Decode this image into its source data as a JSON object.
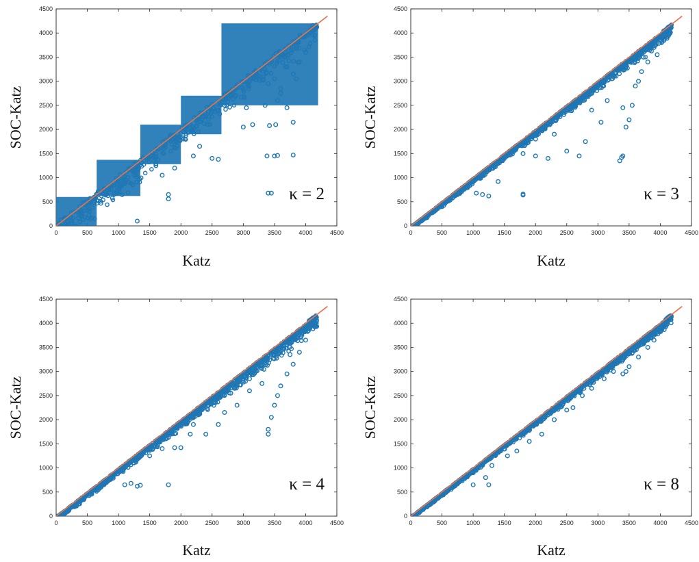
{
  "chart_data": [
    {
      "type": "scatter",
      "annotation": "κ = 2",
      "xlabel": "Katz",
      "ylabel": "SOC-Katz",
      "xlim": [
        0,
        4500
      ],
      "ylim": [
        0,
        4500
      ],
      "xticks": [
        "0",
        "500",
        "1000",
        "1500",
        "2000",
        "2500",
        "3000",
        "3500",
        "4000",
        "4500"
      ],
      "yticks": [
        "0",
        "500",
        "1000",
        "1500",
        "2000",
        "2500",
        "3000",
        "3500",
        "4000",
        "4500"
      ],
      "reference_line": {
        "x": [
          0,
          4350
        ],
        "y": [
          0,
          4350
        ],
        "color": "#e8744a"
      },
      "marker_color": "#1f77b4",
      "marker": "open-circle",
      "bands": [
        {
          "x": [
            0,
            650
          ],
          "y": [
            0,
            600
          ]
        },
        {
          "x": [
            650,
            1350
          ],
          "y": [
            620,
            1370
          ]
        },
        {
          "x": [
            1350,
            2000
          ],
          "y": [
            1280,
            2100
          ]
        },
        {
          "x": [
            2000,
            2650
          ],
          "y": [
            1900,
            2700
          ]
        },
        {
          "x": [
            2650,
            4200
          ],
          "y": [
            2500,
            4200
          ]
        }
      ],
      "outliers": [
        [
          1300,
          100
        ],
        [
          1800,
          650
        ],
        [
          1800,
          560
        ],
        [
          3400,
          680
        ],
        [
          3450,
          680
        ],
        [
          3380,
          1450
        ],
        [
          3500,
          1450
        ],
        [
          3550,
          1460
        ],
        [
          3800,
          1470
        ],
        [
          3000,
          2050
        ],
        [
          3150,
          2100
        ],
        [
          3420,
          2080
        ],
        [
          3520,
          2100
        ],
        [
          3800,
          2150
        ],
        [
          3700,
          2450
        ],
        [
          3550,
          2600
        ],
        [
          3600,
          2850
        ],
        [
          3400,
          2950
        ],
        [
          3500,
          3050
        ],
        [
          3800,
          3150
        ],
        [
          3700,
          3300
        ],
        [
          3900,
          3400
        ],
        [
          4000,
          3600
        ],
        [
          3850,
          3050
        ],
        [
          3600,
          2750
        ],
        [
          3350,
          2500
        ],
        [
          3050,
          2450
        ],
        [
          2700,
          2500
        ],
        [
          2600,
          1380
        ],
        [
          2500,
          1400
        ],
        [
          2300,
          1650
        ],
        [
          1900,
          1200
        ],
        [
          1700,
          1050
        ],
        [
          1600,
          1250
        ],
        [
          2200,
          1450
        ]
      ]
    },
    {
      "type": "scatter",
      "annotation": "κ = 3",
      "xlabel": "Katz",
      "ylabel": "SOC-Katz",
      "xlim": [
        0,
        4500
      ],
      "ylim": [
        0,
        4500
      ],
      "xticks": [
        "0",
        "500",
        "1000",
        "1500",
        "2000",
        "2500",
        "3000",
        "3500",
        "4000",
        "4500"
      ],
      "yticks": [
        "0",
        "500",
        "1000",
        "1500",
        "2000",
        "2500",
        "3000",
        "3500",
        "4000",
        "4500"
      ],
      "reference_line": {
        "x": [
          0,
          4350
        ],
        "y": [
          0,
          4350
        ],
        "color": "#e8744a"
      },
      "marker_color": "#1f77b4",
      "marker": "open-circle",
      "band_below_diagonal": 200,
      "outliers": [
        [
          1050,
          680
        ],
        [
          1150,
          650
        ],
        [
          1250,
          620
        ],
        [
          1800,
          660
        ],
        [
          1800,
          640
        ],
        [
          1400,
          920
        ],
        [
          1600,
          1500
        ],
        [
          1800,
          1500
        ],
        [
          2000,
          1450
        ],
        [
          2200,
          1400
        ],
        [
          2500,
          1550
        ],
        [
          2800,
          1750
        ],
        [
          2700,
          1450
        ],
        [
          3350,
          1350
        ],
        [
          3380,
          1420
        ],
        [
          3400,
          1450
        ],
        [
          3450,
          2050
        ],
        [
          3500,
          2200
        ],
        [
          3400,
          2450
        ],
        [
          3550,
          2500
        ],
        [
          3600,
          2900
        ],
        [
          3700,
          3200
        ],
        [
          3800,
          3400
        ],
        [
          3950,
          3550
        ],
        [
          3050,
          2150
        ],
        [
          2900,
          2400
        ],
        [
          3150,
          2600
        ],
        [
          2300,
          1900
        ],
        [
          2000,
          1800
        ],
        [
          3650,
          3000
        ],
        [
          3900,
          3700
        ],
        [
          4000,
          3900
        ]
      ]
    },
    {
      "type": "scatter",
      "annotation": "κ = 4",
      "xlabel": "Katz",
      "ylabel": "SOC-Katz",
      "xlim": [
        0,
        4500
      ],
      "ylim": [
        0,
        4500
      ],
      "xticks": [
        "0",
        "500",
        "1000",
        "1500",
        "2000",
        "2500",
        "3000",
        "3500",
        "4000",
        "4500"
      ],
      "yticks": [
        "0",
        "500",
        "1000",
        "1500",
        "2000",
        "2500",
        "3000",
        "3500",
        "4000",
        "4500"
      ],
      "reference_line": {
        "x": [
          0,
          4350
        ],
        "y": [
          0,
          4350
        ],
        "color": "#e8744a"
      },
      "marker_color": "#1f77b4",
      "marker": "open-circle",
      "band_below_diagonal": 250,
      "outliers": [
        [
          1100,
          650
        ],
        [
          1200,
          680
        ],
        [
          1300,
          620
        ],
        [
          1350,
          640
        ],
        [
          1800,
          650
        ],
        [
          1500,
          1250
        ],
        [
          1700,
          1400
        ],
        [
          1900,
          1420
        ],
        [
          2000,
          1420
        ],
        [
          2150,
          1700
        ],
        [
          2400,
          1700
        ],
        [
          2600,
          1900
        ],
        [
          2700,
          2150
        ],
        [
          2900,
          2300
        ],
        [
          3100,
          2600
        ],
        [
          3300,
          2750
        ],
        [
          3400,
          1700
        ],
        [
          3400,
          1800
        ],
        [
          3450,
          2050
        ],
        [
          3500,
          2300
        ],
        [
          3550,
          2500
        ],
        [
          3600,
          2700
        ],
        [
          3700,
          2950
        ],
        [
          3800,
          3150
        ],
        [
          3900,
          3400
        ],
        [
          4000,
          3650
        ],
        [
          3100,
          2850
        ],
        [
          2800,
          2550
        ],
        [
          3750,
          3350
        ],
        [
          2200,
          1900
        ]
      ]
    },
    {
      "type": "scatter",
      "annotation": "κ = 8",
      "xlabel": "Katz",
      "ylabel": "SOC-Katz",
      "xlim": [
        0,
        4500
      ],
      "ylim": [
        0,
        4500
      ],
      "xticks": [
        "0",
        "500",
        "1000",
        "1500",
        "2000",
        "2500",
        "3000",
        "3500",
        "4000",
        "4500"
      ],
      "yticks": [
        "0",
        "500",
        "1000",
        "1500",
        "2000",
        "2500",
        "3000",
        "3500",
        "4000",
        "4500"
      ],
      "reference_line": {
        "x": [
          0,
          4350
        ],
        "y": [
          0,
          4350
        ],
        "color": "#e8744a"
      },
      "marker_color": "#1f77b4",
      "marker": "open-circle",
      "band_below_diagonal": 150,
      "outliers": [
        [
          1000,
          650
        ],
        [
          1250,
          650
        ],
        [
          1200,
          800
        ],
        [
          1300,
          1050
        ],
        [
          1550,
          1250
        ],
        [
          1700,
          1350
        ],
        [
          1900,
          1550
        ],
        [
          2100,
          1700
        ],
        [
          2300,
          2000
        ],
        [
          2600,
          2250
        ],
        [
          2900,
          2650
        ],
        [
          3100,
          2850
        ],
        [
          3400,
          2950
        ],
        [
          3450,
          3000
        ],
        [
          3500,
          3100
        ],
        [
          3650,
          3300
        ],
        [
          3800,
          3500
        ],
        [
          3900,
          3650
        ],
        [
          4000,
          3850
        ],
        [
          2500,
          2200
        ],
        [
          2750,
          2500
        ],
        [
          3250,
          3000
        ]
      ]
    }
  ]
}
